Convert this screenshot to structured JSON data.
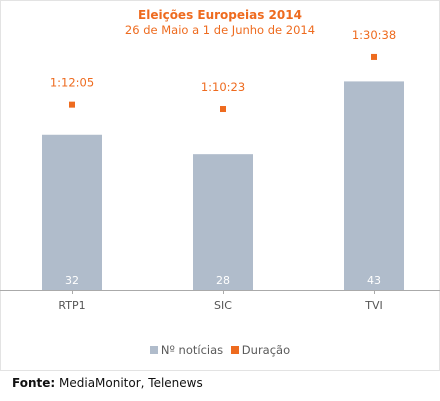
{
  "chart_data": {
    "type": "bar",
    "title": "Eleições Europeias 2014",
    "subtitle": "26 de Maio a 1 de Junho de 2014",
    "categories": [
      "RTP1",
      "SIC",
      "TVI"
    ],
    "series": [
      {
        "name": "Nº notícias",
        "kind": "bar",
        "color": "#b0bccb",
        "values": [
          32,
          28,
          43
        ]
      },
      {
        "name": "Duração",
        "kind": "marker",
        "color": "#ee6b1f",
        "values": [
          "1:12:05",
          "1:10:23",
          "1:30:38"
        ],
        "seconds": [
          4325,
          4223,
          5438
        ]
      }
    ],
    "ylim": [
      0,
      47
    ],
    "grid": false,
    "legend": "bottom"
  },
  "source": {
    "label": "Fonte:",
    "text": "MediaMonitor, Telenews"
  },
  "colors": {
    "accent": "#ee6b1f",
    "bar": "#b0bccb",
    "axis": "#aaaaaa",
    "label": "#555555"
  }
}
